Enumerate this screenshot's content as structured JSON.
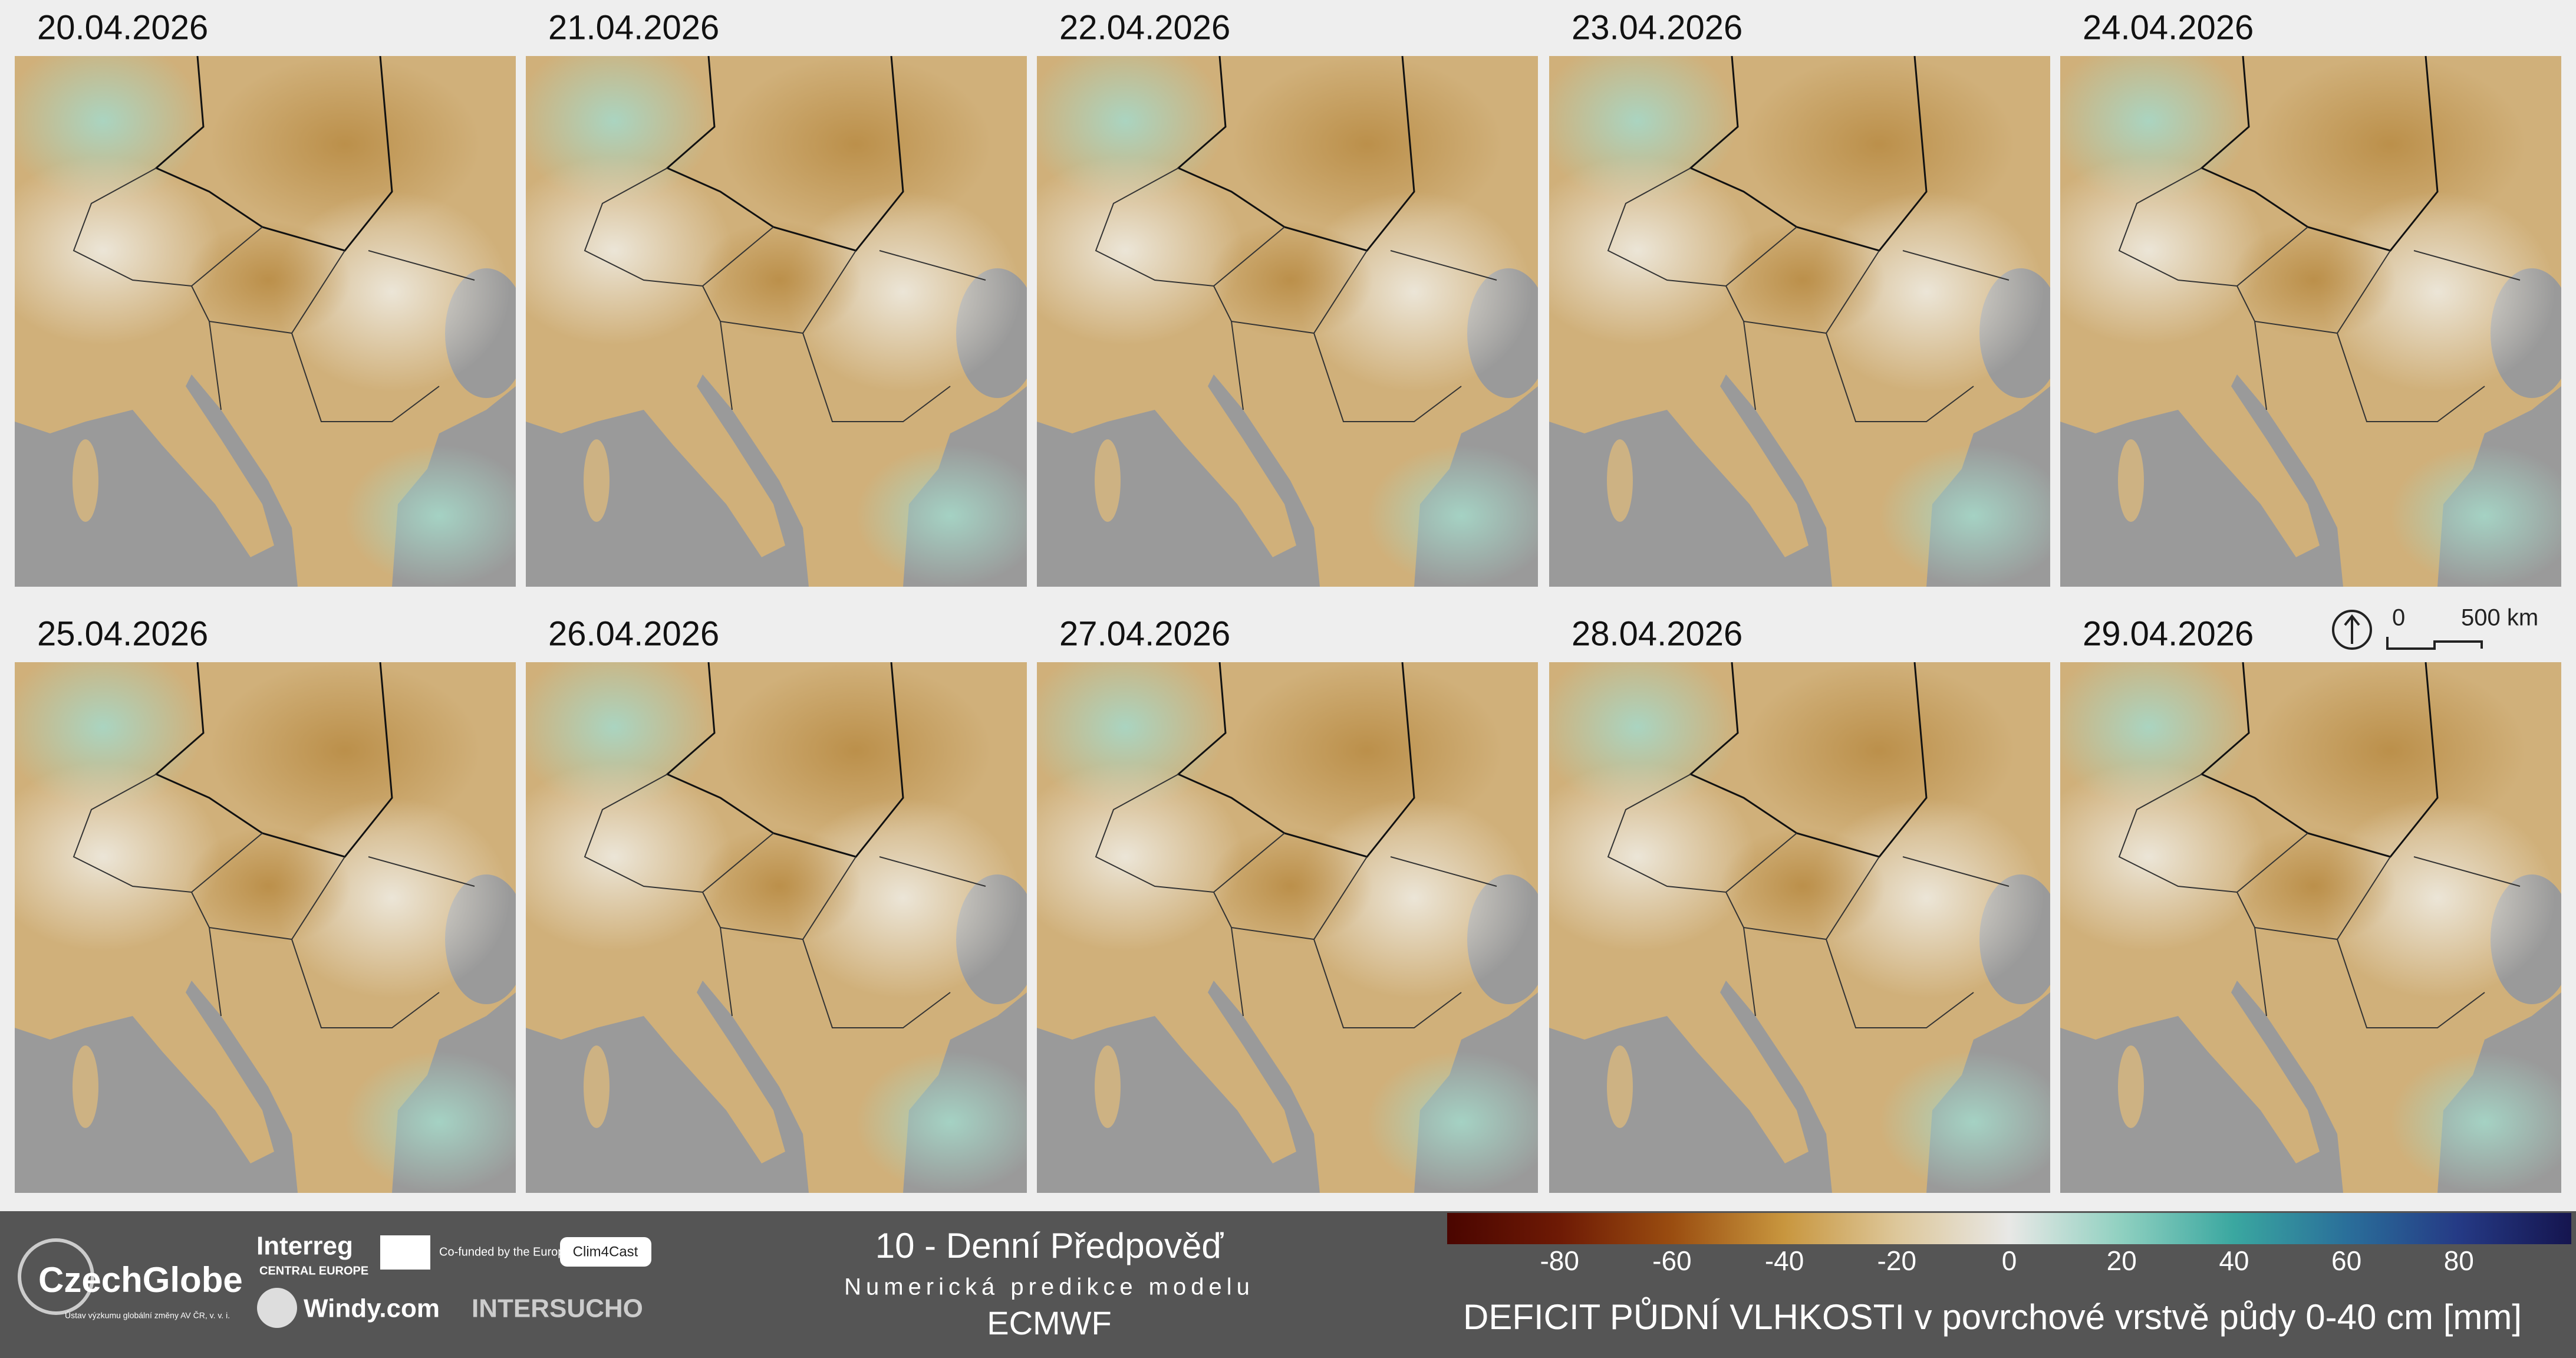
{
  "dates": [
    "20.04.2026",
    "21.04.2026",
    "22.04.2026",
    "23.04.2026",
    "24.04.2026",
    "25.04.2026",
    "26.04.2026",
    "27.04.2026",
    "28.04.2026",
    "29.04.2026"
  ],
  "scale_bar": {
    "start": "0",
    "end": "500 km"
  },
  "footer": {
    "org": "CzechGlobe",
    "org_sub": "Ústav výzkumu globální změny AV ČR, v. v. i.",
    "interreg": "Interreg",
    "interreg_sub": "CENTRAL EUROPE",
    "eu": "Co-funded by the European Union",
    "clim": "Clim4Cast",
    "windy": "Windy.com",
    "intersucho": "INTERSUCHO",
    "title": "10 - Denní Předpověď",
    "subtitle": "Numerická predikce modelu",
    "model": "ECMWF"
  },
  "colorbar": {
    "lim": [
      -100,
      100
    ],
    "ticks": [
      -80,
      -60,
      -40,
      -20,
      0,
      20,
      40,
      60,
      80
    ],
    "label": "DEFICIT PŮDNÍ VLHKOSTI v povrchové vrstvě půdy 0-40 cm [mm]"
  }
}
